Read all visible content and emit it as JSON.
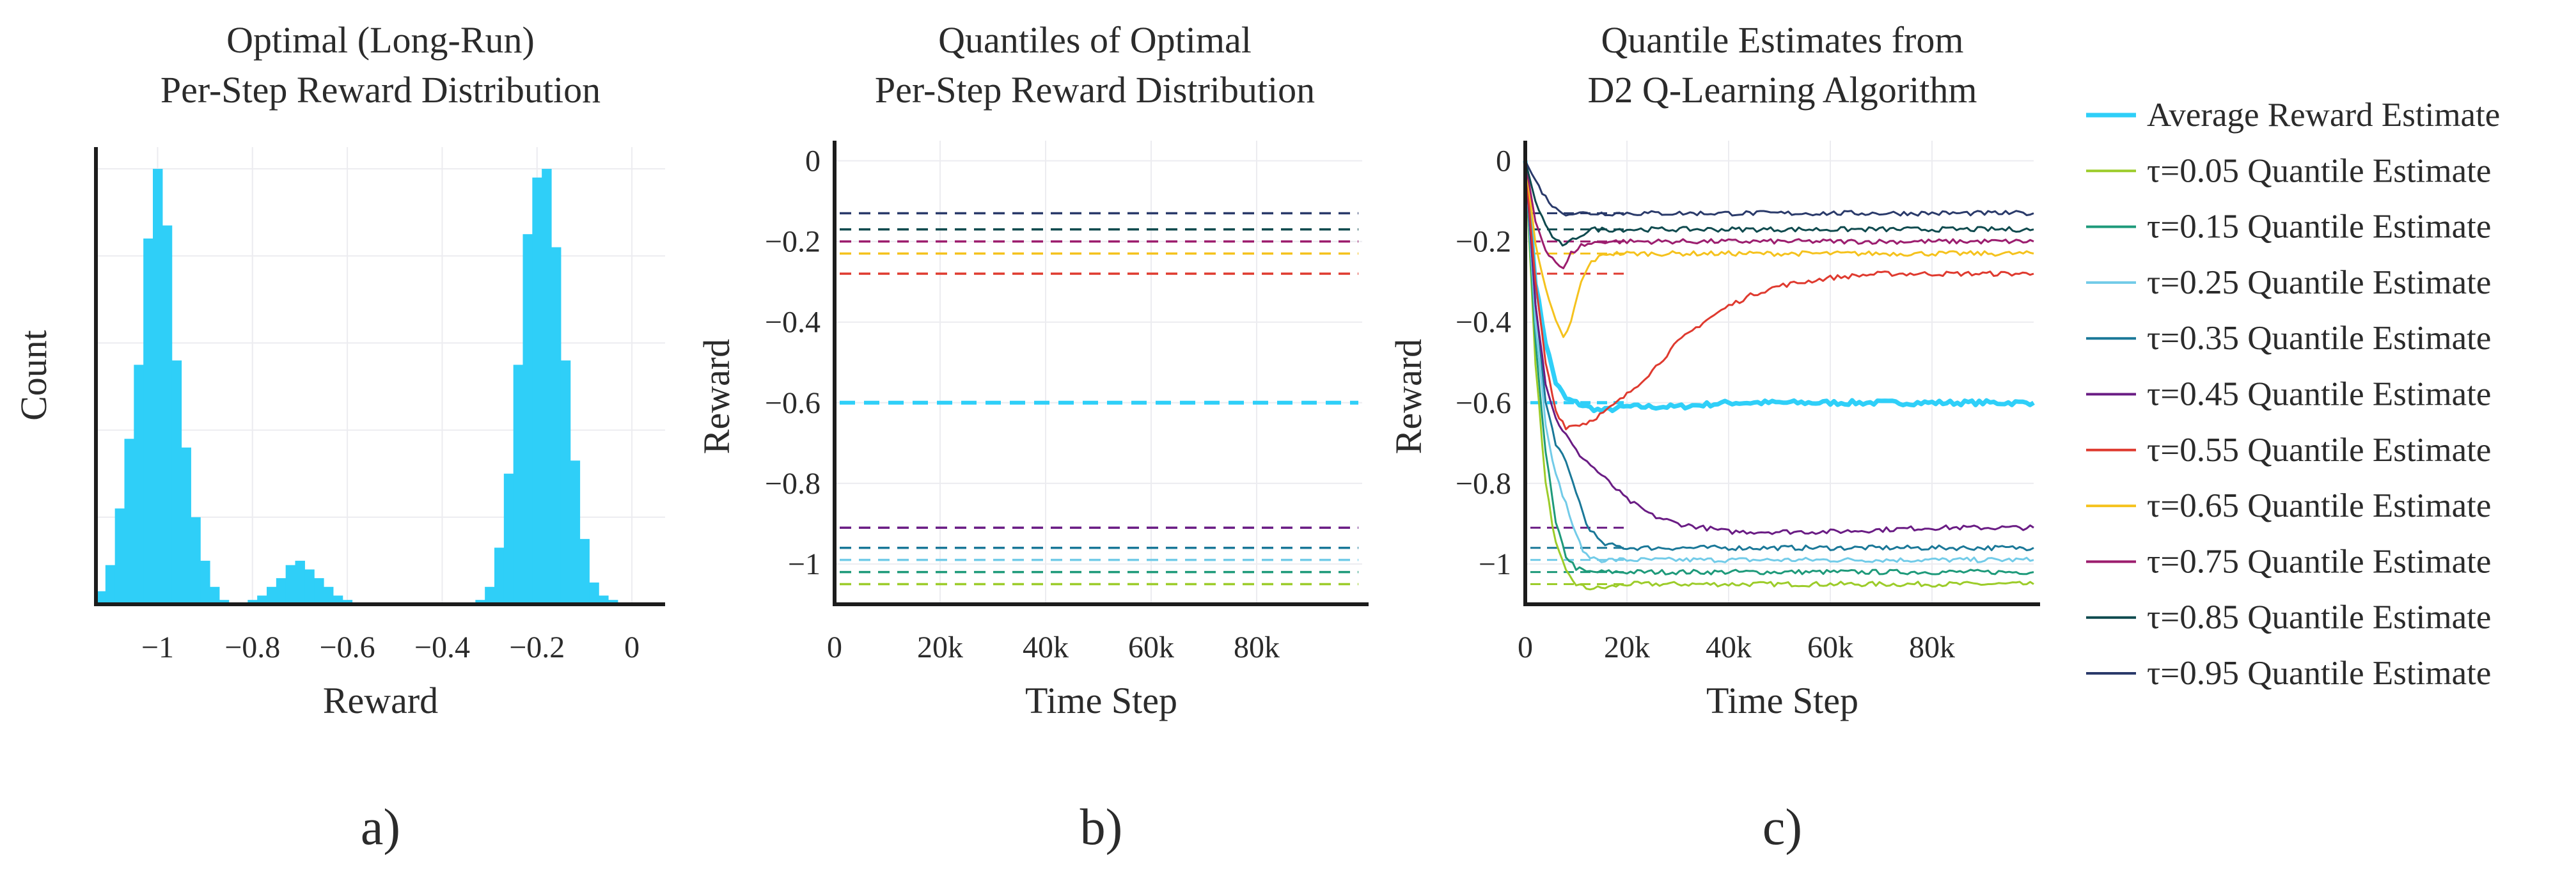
{
  "colors": {
    "avg": "#2fcff8",
    "q005": "#9ccc2a",
    "q015": "#1e9a7a",
    "q025": "#72cbe8",
    "q035": "#1a7898",
    "q045": "#6a1c84",
    "q055": "#df3a2f",
    "q065": "#f5c21d",
    "q075": "#9c1d6e",
    "q085": "#0f4a4e",
    "q095": "#2a3a6a",
    "hist": "#2fcff8"
  },
  "panel_labels": [
    "a)",
    "b)",
    "c)"
  ],
  "legend": {
    "entries": [
      "Average Reward Estimate",
      "τ=0.05 Quantile Estimate",
      "τ=0.15 Quantile Estimate",
      "τ=0.25 Quantile Estimate",
      "τ=0.35 Quantile Estimate",
      "τ=0.45 Quantile Estimate",
      "τ=0.55 Quantile Estimate",
      "τ=0.65 Quantile Estimate",
      "τ=0.75 Quantile Estimate",
      "τ=0.85 Quantile Estimate",
      "τ=0.95 Quantile Estimate"
    ]
  },
  "chart_data": [
    {
      "type": "bar",
      "panel": "a",
      "title_lines": [
        "Optimal (Long-Run)",
        "Per-Step Reward Distribution"
      ],
      "xlabel": "Reward",
      "ylabel": "Count",
      "xlim": [
        -1.13,
        0.07
      ],
      "ylim": [
        0,
        1.05
      ],
      "xticks": [
        -1,
        -0.8,
        -0.6,
        -0.4,
        -0.2,
        0
      ],
      "xtick_labels": [
        "−1",
        "−0.8",
        "−0.6",
        "−0.4",
        "−0.2",
        "0"
      ],
      "bin_width": 0.02,
      "bins": [
        [
          -1.13,
          0.03
        ],
        [
          -1.11,
          0.09
        ],
        [
          -1.09,
          0.22
        ],
        [
          -1.07,
          0.38
        ],
        [
          -1.05,
          0.55
        ],
        [
          -1.03,
          0.84
        ],
        [
          -1.01,
          1.0
        ],
        [
          -0.99,
          0.87
        ],
        [
          -0.97,
          0.56
        ],
        [
          -0.95,
          0.36
        ],
        [
          -0.93,
          0.2
        ],
        [
          -0.91,
          0.1
        ],
        [
          -0.89,
          0.04
        ],
        [
          -0.87,
          0.01
        ],
        [
          -0.81,
          0.01
        ],
        [
          -0.79,
          0.02
        ],
        [
          -0.77,
          0.04
        ],
        [
          -0.75,
          0.06
        ],
        [
          -0.73,
          0.09
        ],
        [
          -0.71,
          0.1
        ],
        [
          -0.69,
          0.08
        ],
        [
          -0.67,
          0.06
        ],
        [
          -0.65,
          0.04
        ],
        [
          -0.63,
          0.02
        ],
        [
          -0.61,
          0.01
        ],
        [
          -0.33,
          0.01
        ],
        [
          -0.31,
          0.04
        ],
        [
          -0.29,
          0.13
        ],
        [
          -0.27,
          0.3
        ],
        [
          -0.25,
          0.55
        ],
        [
          -0.23,
          0.85
        ],
        [
          -0.21,
          0.98
        ],
        [
          -0.19,
          1.0
        ],
        [
          -0.17,
          0.82
        ],
        [
          -0.15,
          0.56
        ],
        [
          -0.13,
          0.33
        ],
        [
          -0.11,
          0.15
        ],
        [
          -0.09,
          0.05
        ],
        [
          -0.07,
          0.02
        ],
        [
          -0.05,
          0.01
        ]
      ]
    },
    {
      "type": "line",
      "panel": "b",
      "title_lines": [
        "Quantiles of Optimal",
        "Per-Step Reward Distribution"
      ],
      "xlabel": "Time Step",
      "ylabel": "Reward",
      "xlim": [
        0,
        100000
      ],
      "ylim": [
        -1.1,
        0.05
      ],
      "xticks": [
        0,
        20000,
        40000,
        60000,
        80000
      ],
      "xtick_labels": [
        "0",
        "20k",
        "40k",
        "60k",
        "80k"
      ],
      "yticks": [
        0,
        -0.2,
        -0.4,
        -0.6,
        -0.8,
        -1
      ],
      "ytick_labels": [
        "0",
        "−0.2",
        "−0.4",
        "−0.6",
        "−0.8",
        "−1"
      ],
      "series": [
        {
          "name": "Average Reward",
          "color_key": "avg",
          "dashed": true,
          "value": -0.6
        },
        {
          "name": "τ=0.05",
          "color_key": "q005",
          "dashed": true,
          "value": -1.05
        },
        {
          "name": "τ=0.15",
          "color_key": "q015",
          "dashed": true,
          "value": -1.02
        },
        {
          "name": "τ=0.25",
          "color_key": "q025",
          "dashed": true,
          "value": -0.99
        },
        {
          "name": "τ=0.35",
          "color_key": "q035",
          "dashed": true,
          "value": -0.96
        },
        {
          "name": "τ=0.45",
          "color_key": "q045",
          "dashed": true,
          "value": -0.91
        },
        {
          "name": "τ=0.55",
          "color_key": "q055",
          "dashed": true,
          "value": -0.28
        },
        {
          "name": "τ=0.65",
          "color_key": "q065",
          "dashed": true,
          "value": -0.23
        },
        {
          "name": "τ=0.75",
          "color_key": "q075",
          "dashed": true,
          "value": -0.2
        },
        {
          "name": "τ=0.85",
          "color_key": "q085",
          "dashed": true,
          "value": -0.17
        },
        {
          "name": "τ=0.95",
          "color_key": "q095",
          "dashed": true,
          "value": -0.13
        }
      ]
    },
    {
      "type": "line",
      "panel": "c",
      "title_lines": [
        "Quantile Estimates from",
        "D2 Q-Learning Algorithm"
      ],
      "xlabel": "Time Step",
      "ylabel": "Reward",
      "xlim": [
        0,
        100000
      ],
      "ylim": [
        -1.1,
        0.05
      ],
      "xticks": [
        0,
        20000,
        40000,
        60000,
        80000
      ],
      "xtick_labels": [
        "0",
        "20k",
        "40k",
        "60k",
        "80k"
      ],
      "yticks": [
        0,
        -0.2,
        -0.4,
        -0.6,
        -0.8,
        -1
      ],
      "ytick_labels": [
        "0",
        "−0.2",
        "−0.4",
        "−0.6",
        "−0.8",
        "−1"
      ],
      "reference_lines": [
        {
          "color_key": "avg",
          "value": -0.6
        },
        {
          "color_key": "q005",
          "value": -1.05
        },
        {
          "color_key": "q015",
          "value": -1.02
        },
        {
          "color_key": "q025",
          "value": -0.99
        },
        {
          "color_key": "q035",
          "value": -0.96
        },
        {
          "color_key": "q045",
          "value": -0.91
        },
        {
          "color_key": "q055",
          "value": -0.28
        },
        {
          "color_key": "q065",
          "value": -0.23
        },
        {
          "color_key": "q075",
          "value": -0.2
        },
        {
          "color_key": "q085",
          "value": -0.17
        },
        {
          "color_key": "q095",
          "value": -0.13
        }
      ],
      "series": [
        {
          "name": "Average Reward Estimate",
          "color_key": "avg",
          "width": 7,
          "points": [
            [
              0,
              0
            ],
            [
              2000,
              -0.3
            ],
            [
              4000,
              -0.45
            ],
            [
              6000,
              -0.55
            ],
            [
              8000,
              -0.59
            ],
            [
              10000,
              -0.6
            ],
            [
              12000,
              -0.61
            ],
            [
              15000,
              -0.62
            ],
            [
              20000,
              -0.61
            ],
            [
              30000,
              -0.61
            ],
            [
              40000,
              -0.6
            ],
            [
              50000,
              -0.6
            ],
            [
              60000,
              -0.6
            ],
            [
              70000,
              -0.6
            ],
            [
              80000,
              -0.6
            ],
            [
              90000,
              -0.6
            ],
            [
              100000,
              -0.6
            ]
          ]
        },
        {
          "name": "τ=0.05 Quantile Estimate",
          "color_key": "q005",
          "width": 3,
          "points": [
            [
              0,
              0
            ],
            [
              2000,
              -0.5
            ],
            [
              4000,
              -0.8
            ],
            [
              6000,
              -0.95
            ],
            [
              8000,
              -1.02
            ],
            [
              10000,
              -1.05
            ],
            [
              12000,
              -1.06
            ],
            [
              15000,
              -1.06
            ],
            [
              20000,
              -1.05
            ],
            [
              30000,
              -1.05
            ],
            [
              40000,
              -1.05
            ],
            [
              60000,
              -1.05
            ],
            [
              80000,
              -1.05
            ],
            [
              100000,
              -1.05
            ]
          ]
        },
        {
          "name": "τ=0.15 Quantile Estimate",
          "color_key": "q015",
          "width": 3,
          "points": [
            [
              0,
              0
            ],
            [
              2000,
              -0.45
            ],
            [
              4000,
              -0.72
            ],
            [
              6000,
              -0.9
            ],
            [
              8000,
              -0.98
            ],
            [
              10000,
              -1.01
            ],
            [
              12000,
              -1.02
            ],
            [
              15000,
              -1.02
            ],
            [
              20000,
              -1.02
            ],
            [
              40000,
              -1.02
            ],
            [
              60000,
              -1.02
            ],
            [
              80000,
              -1.02
            ],
            [
              100000,
              -1.02
            ]
          ]
        },
        {
          "name": "τ=0.25 Quantile Estimate",
          "color_key": "q025",
          "width": 3,
          "points": [
            [
              0,
              0
            ],
            [
              2000,
              -0.4
            ],
            [
              4000,
              -0.65
            ],
            [
              6000,
              -0.78
            ],
            [
              8000,
              -0.85
            ],
            [
              10000,
              -0.93
            ],
            [
              12000,
              -0.98
            ],
            [
              15000,
              -0.99
            ],
            [
              20000,
              -0.99
            ],
            [
              40000,
              -0.99
            ],
            [
              60000,
              -0.99
            ],
            [
              80000,
              -0.99
            ],
            [
              100000,
              -0.99
            ]
          ]
        },
        {
          "name": "τ=0.35 Quantile Estimate",
          "color_key": "q035",
          "width": 3,
          "points": [
            [
              0,
              0
            ],
            [
              2000,
              -0.35
            ],
            [
              4000,
              -0.6
            ],
            [
              6000,
              -0.7
            ],
            [
              8000,
              -0.75
            ],
            [
              10000,
              -0.82
            ],
            [
              12000,
              -0.9
            ],
            [
              15000,
              -0.95
            ],
            [
              20000,
              -0.96
            ],
            [
              40000,
              -0.96
            ],
            [
              60000,
              -0.96
            ],
            [
              80000,
              -0.96
            ],
            [
              100000,
              -0.96
            ]
          ]
        },
        {
          "name": "τ=0.45 Quantile Estimate",
          "color_key": "q045",
          "width": 3,
          "points": [
            [
              0,
              0
            ],
            [
              2000,
              -0.35
            ],
            [
              4000,
              -0.55
            ],
            [
              6000,
              -0.64
            ],
            [
              8000,
              -0.68
            ],
            [
              10000,
              -0.72
            ],
            [
              15000,
              -0.78
            ],
            [
              20000,
              -0.84
            ],
            [
              25000,
              -0.88
            ],
            [
              30000,
              -0.9
            ],
            [
              35000,
              -0.91
            ],
            [
              40000,
              -0.92
            ],
            [
              50000,
              -0.92
            ],
            [
              60000,
              -0.92
            ],
            [
              80000,
              -0.91
            ],
            [
              100000,
              -0.91
            ]
          ]
        },
        {
          "name": "τ=0.55 Quantile Estimate",
          "color_key": "q055",
          "width": 3,
          "points": [
            [
              0,
              0
            ],
            [
              2000,
              -0.3
            ],
            [
              4000,
              -0.5
            ],
            [
              6000,
              -0.62
            ],
            [
              8000,
              -0.66
            ],
            [
              12000,
              -0.65
            ],
            [
              16000,
              -0.62
            ],
            [
              20000,
              -0.58
            ],
            [
              25000,
              -0.52
            ],
            [
              30000,
              -0.45
            ],
            [
              35000,
              -0.4
            ],
            [
              40000,
              -0.36
            ],
            [
              45000,
              -0.33
            ],
            [
              50000,
              -0.31
            ],
            [
              60000,
              -0.29
            ],
            [
              70000,
              -0.28
            ],
            [
              80000,
              -0.28
            ],
            [
              90000,
              -0.28
            ],
            [
              100000,
              -0.28
            ]
          ]
        },
        {
          "name": "τ=0.65 Quantile Estimate",
          "color_key": "q065",
          "width": 3,
          "points": [
            [
              0,
              0
            ],
            [
              2000,
              -0.2
            ],
            [
              4000,
              -0.32
            ],
            [
              6000,
              -0.4
            ],
            [
              7500,
              -0.44
            ],
            [
              9000,
              -0.4
            ],
            [
              11000,
              -0.3
            ],
            [
              13000,
              -0.25
            ],
            [
              16000,
              -0.23
            ],
            [
              20000,
              -0.23
            ],
            [
              40000,
              -0.23
            ],
            [
              60000,
              -0.23
            ],
            [
              80000,
              -0.23
            ],
            [
              100000,
              -0.23
            ]
          ]
        },
        {
          "name": "τ=0.75 Quantile Estimate",
          "color_key": "q075",
          "width": 3,
          "points": [
            [
              0,
              0
            ],
            [
              2000,
              -0.15
            ],
            [
              4000,
              -0.22
            ],
            [
              6000,
              -0.25
            ],
            [
              7500,
              -0.27
            ],
            [
              9000,
              -0.23
            ],
            [
              11000,
              -0.21
            ],
            [
              15000,
              -0.2
            ],
            [
              20000,
              -0.2
            ],
            [
              40000,
              -0.2
            ],
            [
              60000,
              -0.2
            ],
            [
              80000,
              -0.2
            ],
            [
              100000,
              -0.2
            ]
          ]
        },
        {
          "name": "τ=0.85 Quantile Estimate",
          "color_key": "q085",
          "width": 3,
          "points": [
            [
              0,
              0
            ],
            [
              2000,
              -0.1
            ],
            [
              4000,
              -0.16
            ],
            [
              6000,
              -0.2
            ],
            [
              8000,
              -0.21
            ],
            [
              10000,
              -0.19
            ],
            [
              13000,
              -0.17
            ],
            [
              20000,
              -0.17
            ],
            [
              40000,
              -0.17
            ],
            [
              60000,
              -0.17
            ],
            [
              80000,
              -0.17
            ],
            [
              100000,
              -0.17
            ]
          ]
        },
        {
          "name": "τ=0.95 Quantile Estimate",
          "color_key": "q095",
          "width": 3,
          "points": [
            [
              0,
              0
            ],
            [
              2000,
              -0.05
            ],
            [
              4000,
              -0.09
            ],
            [
              6000,
              -0.12
            ],
            [
              8000,
              -0.13
            ],
            [
              10000,
              -0.13
            ],
            [
              20000,
              -0.13
            ],
            [
              40000,
              -0.13
            ],
            [
              60000,
              -0.13
            ],
            [
              80000,
              -0.13
            ],
            [
              100000,
              -0.13
            ]
          ]
        }
      ]
    }
  ]
}
